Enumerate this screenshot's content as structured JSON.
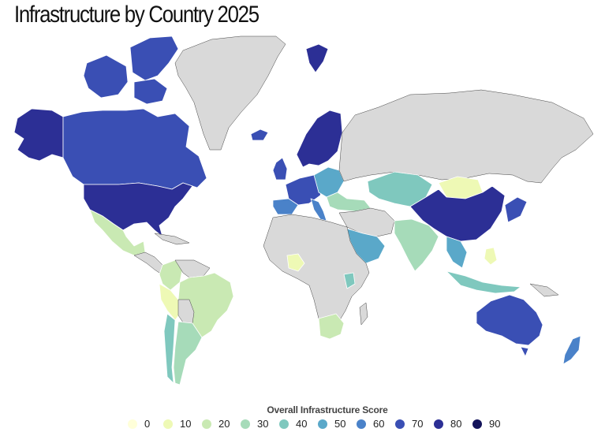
{
  "title": "Infrastructure by Country 2025",
  "legend": {
    "title": "Overall Infrastructure Score",
    "items": [
      {
        "label": "0",
        "color": "#ffffd9"
      },
      {
        "label": "10",
        "color": "#eef9b5"
      },
      {
        "label": "20",
        "color": "#c9e9b3"
      },
      {
        "label": "30",
        "color": "#a6dbb9"
      },
      {
        "label": "40",
        "color": "#7fc8be"
      },
      {
        "label": "50",
        "color": "#5aa8c9"
      },
      {
        "label": "60",
        "color": "#4a82c9"
      },
      {
        "label": "70",
        "color": "#3a4fb4"
      },
      {
        "label": "80",
        "color": "#2c2f95"
      },
      {
        "label": "90",
        "color": "#13135a"
      }
    ]
  },
  "colors": {
    "no_data": "#d9d9d9"
  }
}
